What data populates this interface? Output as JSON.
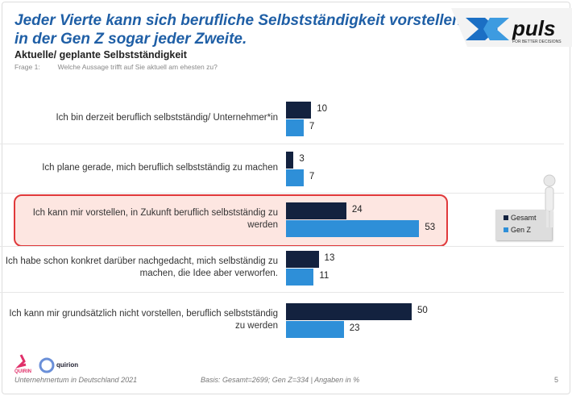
{
  "header": {
    "title_line1": "Jeder Vierte kann sich berufliche Selbstständigkeit vorstellen,",
    "title_line2": "in der Gen Z sogar jeder Zweite.",
    "subtitle": "Aktuelle/ geplante Selbstständigkeit",
    "question_label": "Frage 1:",
    "question_text": "Welche Aussage trifft auf Sie aktuell am ehesten zu?",
    "logo_text": "puls",
    "logo_tagline": "FOR BETTER DECISIONS"
  },
  "chart_data": {
    "type": "bar",
    "orientation": "horizontal",
    "categories": [
      "Ich bin derzeit beruflich selbstständig/ Unternehmer*in",
      "Ich plane gerade, mich beruflich selbstständig zu machen",
      "Ich kann mir vorstellen, in Zukunft beruflich selbstständig zu werden",
      "Ich habe schon konkret darüber nachgedacht, mich selbständig zu machen, die Idee aber verworfen.",
      "Ich kann mir grundsätzlich nicht vorstellen, beruflich selbstständig zu werden"
    ],
    "series": [
      {
        "name": "Gesamt",
        "values": [
          10,
          3,
          24,
          13,
          50
        ],
        "color": "#13223f"
      },
      {
        "name": "Gen Z",
        "values": [
          7,
          7,
          53,
          11,
          23
        ],
        "color": "#2e8fd8"
      }
    ],
    "highlighted_category": 2,
    "legend_position": "right",
    "grid": false
  },
  "footer": {
    "left": "Unternehmertum in Deutschland 2021",
    "basis": "Basis: Gesamt=2699; Gen Z=334 | Angaben in %",
    "page": "5",
    "brand1": "QUIRIN",
    "brand2": "quirion"
  },
  "colors": {
    "accent": "#1f5fa6",
    "highlight_border": "#e0393b",
    "highlight_fill": "#fde6e1"
  }
}
